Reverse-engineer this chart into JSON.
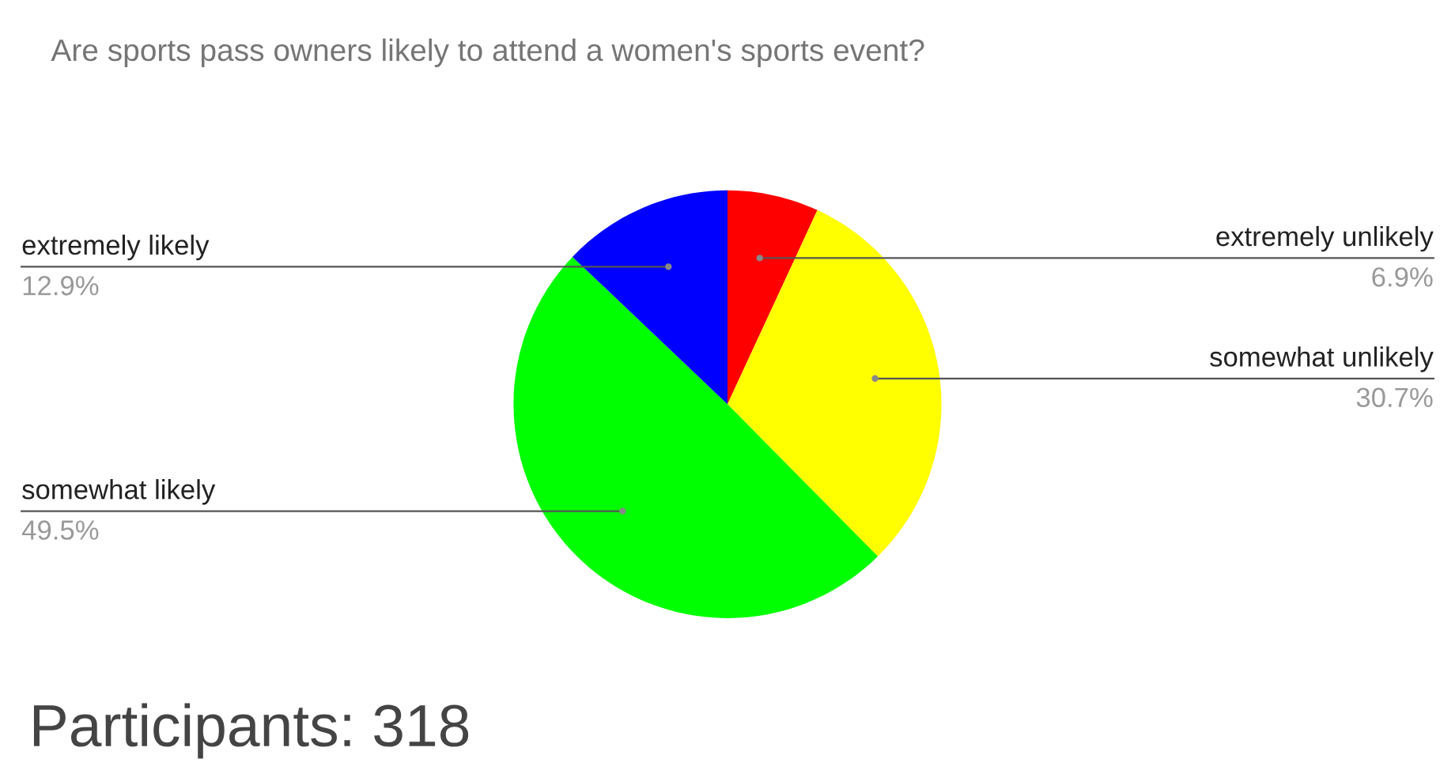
{
  "chart_data": {
    "type": "pie",
    "title": "Are sports pass owners likely to attend a women's sports event?",
    "categories": [
      "extremely unlikely",
      "somewhat unlikely",
      "somewhat likely",
      "extremely likely"
    ],
    "values": [
      6.9,
      30.7,
      49.5,
      12.9
    ],
    "colors": [
      "#ff0000",
      "#ffff00",
      "#00ff00",
      "#0000ff"
    ],
    "value_labels": [
      "6.9%",
      "30.7%",
      "49.5%",
      "12.9%"
    ],
    "legend": false,
    "annotations": [
      "Participants: 318"
    ]
  }
}
